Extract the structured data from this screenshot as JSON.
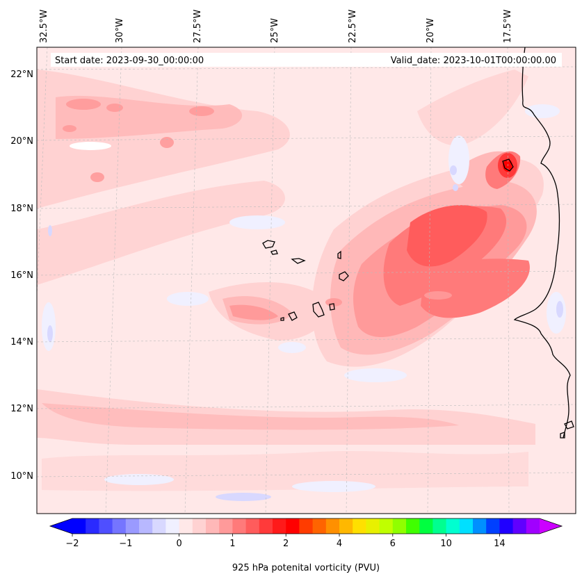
{
  "map": {
    "start_date": "Start date: 2023-09-30_00:00:00",
    "valid_date": "Valid_date: 2023-10-01T00:00:00.00",
    "lon_labels": [
      "32.5°W",
      "30°W",
      "27.5°W",
      "25°W",
      "22.5°W",
      "20°W",
      "17.5°W"
    ],
    "lat_labels": [
      "22°N",
      "20°N",
      "18°N",
      "16°N",
      "14°N",
      "12°N",
      "10°N"
    ]
  },
  "colorbar": {
    "label": "925 hPa potenital vorticity (PVU)",
    "ticks": [
      "−2",
      "−1",
      "0",
      "1",
      "2",
      "4",
      "6",
      "10",
      "14"
    ],
    "colors": [
      "#0000ff",
      "#2a2aff",
      "#4f4fff",
      "#7575ff",
      "#9a9aff",
      "#b8b8ff",
      "#d8d8ff",
      "#f0f0ff",
      "#ffe8e8",
      "#ffd2d2",
      "#ffb8b8",
      "#ff9a9a",
      "#ff7a7a",
      "#ff5c5c",
      "#ff3a3a",
      "#ff1a1a",
      "#ff0000",
      "#ff3c00",
      "#ff6400",
      "#ff9000",
      "#ffb800",
      "#ffe000",
      "#e8f000",
      "#c0ff00",
      "#90ff00",
      "#40ff00",
      "#00ff40",
      "#00ff90",
      "#00ffd0",
      "#00e0ff",
      "#0090ff",
      "#0040ff",
      "#2000ff",
      "#6000ff",
      "#a000ff"
    ],
    "under_color": "#0000ff",
    "over_color": "#cc00ff"
  }
}
